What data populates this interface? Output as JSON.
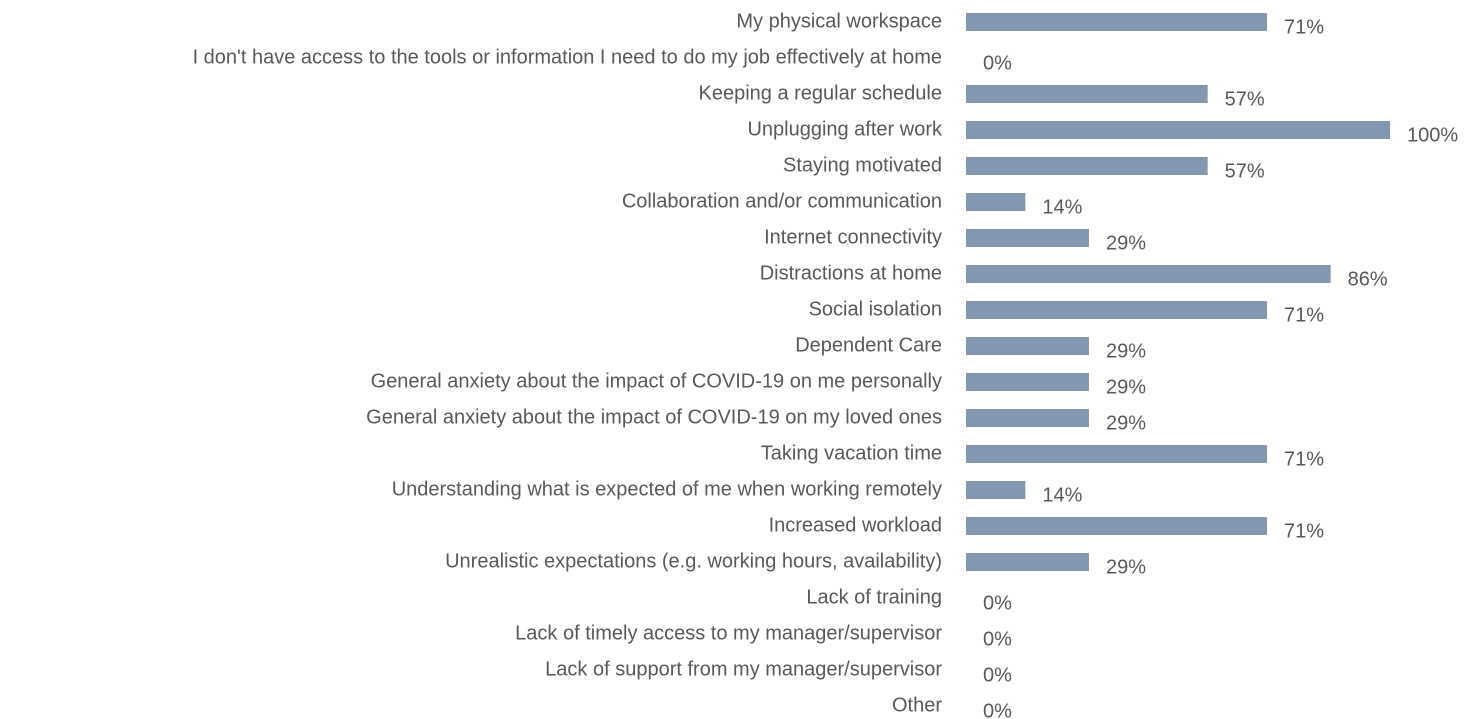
{
  "chart_data": {
    "type": "bar",
    "orientation": "horizontal",
    "categories": [
      "My physical workspace",
      "I don't have access to the tools or information I need to do my job effectively at home",
      "Keeping a regular schedule",
      "Unplugging after work",
      "Staying motivated",
      "Collaboration and/or communication",
      "Internet connectivity",
      "Distractions at home",
      "Social isolation",
      "Dependent Care",
      "General anxiety about the impact of COVID-19 on me personally",
      "General anxiety about the impact of COVID-19 on my loved ones",
      "Taking vacation time",
      "Understanding what is expected of me when working remotely",
      "Increased workload",
      "Unrealistic expectations (e.g. working hours, availability)",
      "Lack of training",
      "Lack of timely access to my manager/supervisor",
      "Lack of support from my manager/supervisor",
      "Other"
    ],
    "values": [
      71,
      0,
      57,
      100,
      57,
      14,
      29,
      86,
      71,
      29,
      29,
      29,
      71,
      14,
      71,
      29,
      0,
      0,
      0,
      0
    ],
    "value_labels": [
      "71%",
      "0%",
      "57%",
      "100%",
      "57%",
      "14%",
      "29%",
      "86%",
      "71%",
      "29%",
      "29%",
      "29%",
      "71%",
      "14%",
      "71%",
      "29%",
      "0%",
      "0%",
      "0%",
      "0%"
    ],
    "color": "#8497b0",
    "xlim": [
      0,
      100
    ]
  }
}
